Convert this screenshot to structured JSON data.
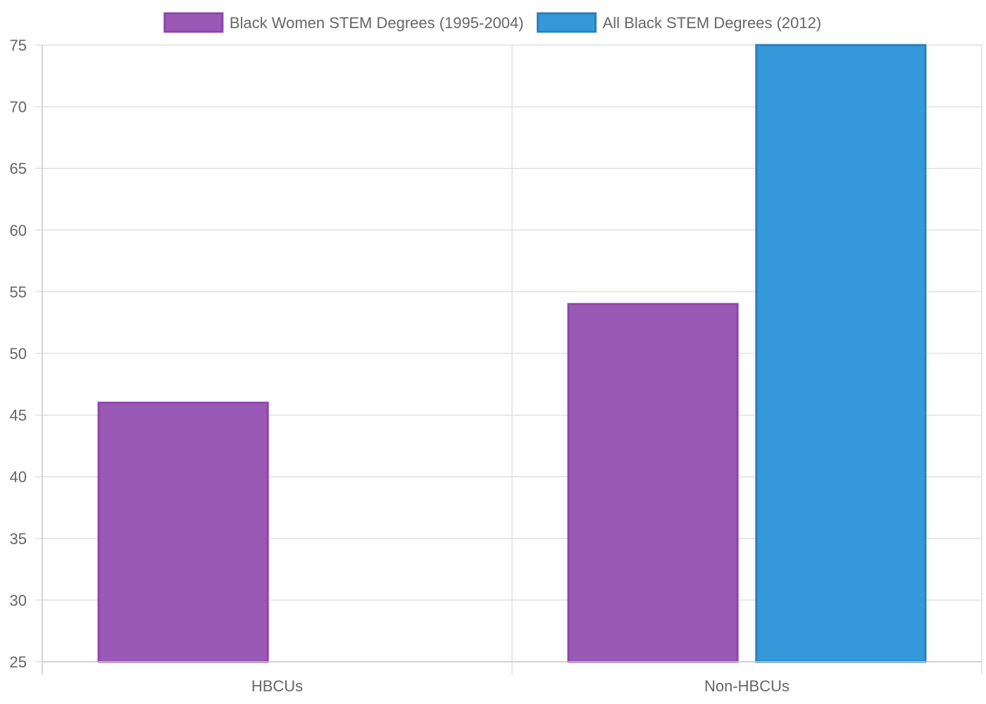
{
  "chart_data": {
    "type": "bar",
    "categories": [
      "HBCUs",
      "Non-HBCUs"
    ],
    "series": [
      {
        "name": "Black Women STEM Degrees (1995-2004)",
        "values": [
          46,
          54
        ],
        "color": "#9b59b6",
        "border_color": "#8e44ad"
      },
      {
        "name": "All Black STEM Degrees (2012)",
        "values": [
          null,
          75
        ],
        "color": "#3498db",
        "border_color": "#2980b9"
      }
    ],
    "ylim": [
      25,
      75
    ],
    "yticks": [
      25,
      30,
      35,
      40,
      45,
      50,
      55,
      60,
      65,
      70,
      75
    ],
    "grid": true,
    "legend_position": "top"
  }
}
